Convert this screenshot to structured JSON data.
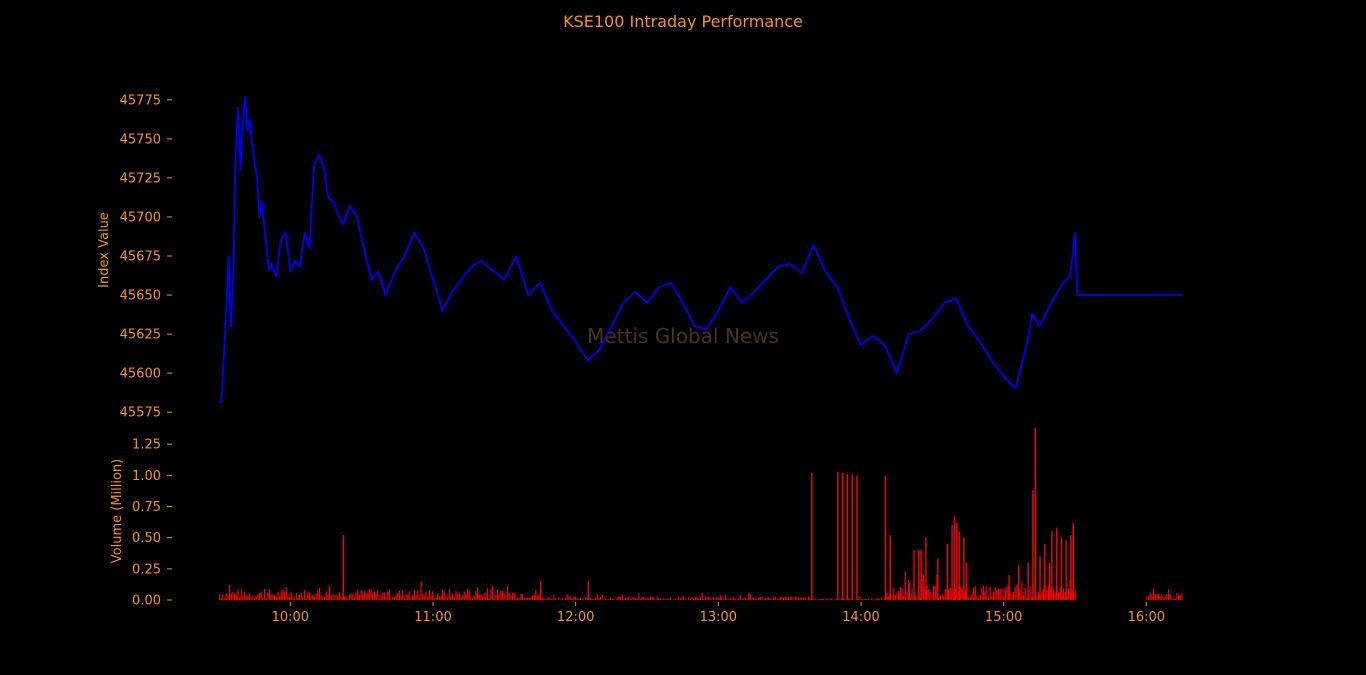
{
  "colors": {
    "background": "#000000",
    "text": "#f7931e",
    "price_line": "#0000ff",
    "volume_bars": "#ff0000",
    "watermark": "#4a3418"
  },
  "chart_data": [
    {
      "type": "line",
      "title": "KSE100 Intraday Performance",
      "ylabel": "Index Value",
      "watermark": "Mettis Global News",
      "ylim": [
        45570,
        45780
      ],
      "yticks": [
        45575,
        45600,
        45625,
        45650,
        45675,
        45700,
        45725,
        45750,
        45775
      ],
      "ytick_labels": [
        "45575",
        "45600",
        "45625",
        "45650",
        "45675",
        "45700",
        "45725",
        "45750",
        "45775"
      ],
      "xlim": [
        "09:30",
        "16:15"
      ],
      "series": [
        {
          "x": [
            "09:30",
            "09:31",
            "09:32",
            "09:33",
            "09:34",
            "09:35",
            "09:36",
            "09:37",
            "09:38",
            "09:39",
            "09:40",
            "09:41",
            "09:42",
            "09:43",
            "09:44",
            "09:46",
            "09:47",
            "09:48",
            "09:50",
            "09:51",
            "09:52",
            "09:54",
            "09:56",
            "09:58",
            "10:00",
            "10:02",
            "10:04",
            "10:06",
            "10:08",
            "10:10",
            "10:12",
            "10:14",
            "10:16",
            "10:18",
            "10:20",
            "10:22",
            "10:25",
            "10:28",
            "10:31",
            "10:34",
            "10:37",
            "10:40",
            "10:44",
            "10:48",
            "10:52",
            "10:56",
            "11:00",
            "11:04",
            "11:08",
            "11:12",
            "11:16",
            "11:20",
            "11:25",
            "11:30",
            "11:35",
            "11:40",
            "11:45",
            "11:50",
            "11:55",
            "12:00",
            "12:05",
            "12:10",
            "12:15",
            "12:20",
            "12:25",
            "12:30",
            "12:35",
            "12:40",
            "12:45",
            "12:50",
            "12:55",
            "13:00",
            "13:05",
            "13:10",
            "13:15",
            "13:20",
            "13:25",
            "13:30",
            "13:35",
            "13:40",
            "13:45",
            "13:50",
            "13:55",
            "14:00",
            "14:05",
            "14:10",
            "14:15",
            "14:20",
            "14:25",
            "14:30",
            "14:35",
            "14:40",
            "14:45",
            "14:50",
            "14:55",
            "15:00",
            "15:05",
            "15:10",
            "15:12",
            "15:15",
            "15:20",
            "15:25",
            "15:28",
            "15:30",
            "15:31",
            "15:40",
            "15:50",
            "16:00",
            "16:10",
            "16:15"
          ],
          "y": [
            45581,
            45582,
            45610,
            45640,
            45675,
            45630,
            45665,
            45740,
            45770,
            45730,
            45760,
            45777,
            45755,
            45762,
            45745,
            45725,
            45700,
            45710,
            45680,
            45666,
            45670,
            45662,
            45685,
            45690,
            45665,
            45672,
            45668,
            45690,
            45680,
            45733,
            45740,
            45732,
            45712,
            45710,
            45702,
            45695,
            45707,
            45700,
            45680,
            45660,
            45665,
            45650,
            45665,
            45675,
            45690,
            45680,
            45660,
            45640,
            45652,
            45660,
            45668,
            45672,
            45666,
            45660,
            45675,
            45650,
            45658,
            45640,
            45630,
            45620,
            45608,
            45615,
            45630,
            45645,
            45652,
            45645,
            45655,
            45658,
            45645,
            45630,
            45628,
            45640,
            45655,
            45645,
            45652,
            45660,
            45668,
            45670,
            45664,
            45682,
            45665,
            45655,
            45635,
            45618,
            45624,
            45618,
            45600,
            45625,
            45627,
            45635,
            45645,
            45648,
            45630,
            45620,
            45608,
            45598,
            45590,
            45620,
            45638,
            45630,
            45645,
            45658,
            45662,
            45690,
            45650,
            45650,
            45650,
            45650,
            45650,
            45650
          ]
        }
      ]
    },
    {
      "type": "bar",
      "ylabel": "Volume (Million)",
      "ylim": [
        0,
        1.38
      ],
      "yticks": [
        0,
        0.25,
        0.5,
        0.75,
        1.0,
        1.25
      ],
      "ytick_labels": [
        "0.00",
        "0.25",
        "0.50",
        "0.75",
        "1.00",
        "1.25"
      ],
      "xlim": [
        "09:30",
        "16:15"
      ],
      "xticks": [
        "10:00",
        "11:00",
        "12:00",
        "13:00",
        "14:00",
        "15:00",
        "16:00"
      ],
      "xtick_labels": [
        "10:00",
        "11:00",
        "12:00",
        "13:00",
        "14:00",
        "15:00",
        "16:00"
      ],
      "spike_bars": {
        "x": [
          "10:22",
          "11:45",
          "12:05",
          "13:39",
          "13:50",
          "13:52",
          "13:54",
          "13:56",
          "13:58",
          "14:10",
          "14:12",
          "14:20",
          "14:22",
          "14:24",
          "14:25",
          "14:27",
          "14:32",
          "14:36",
          "14:38",
          "14:39",
          "14:40",
          "14:41",
          "14:43",
          "14:44",
          "15:02",
          "15:06",
          "15:10",
          "15:12",
          "15:13",
          "15:15",
          "15:17",
          "15:19",
          "15:20",
          "15:22",
          "15:24",
          "15:26",
          "15:28",
          "15:29"
        ],
        "y": [
          0.52,
          0.15,
          0.15,
          1.02,
          1.03,
          1.02,
          1.01,
          1.01,
          1.0,
          1.0,
          0.52,
          0.14,
          0.4,
          0.4,
          0.4,
          0.5,
          0.33,
          0.45,
          0.6,
          0.67,
          0.62,
          0.55,
          0.5,
          0.3,
          0.2,
          0.28,
          0.3,
          0.88,
          1.38,
          0.35,
          0.45,
          0.3,
          0.55,
          0.58,
          0.5,
          0.48,
          0.52,
          0.62
        ]
      },
      "base_volume": {
        "segments": [
          "09:30-11:45",
          "11:45-13:39",
          "13:39-14:10",
          "14:10-15:30",
          "16:00-16:15"
        ],
        "typical_level": [
          0.06,
          0.02,
          0.01,
          0.08,
          0.04
        ]
      }
    }
  ]
}
